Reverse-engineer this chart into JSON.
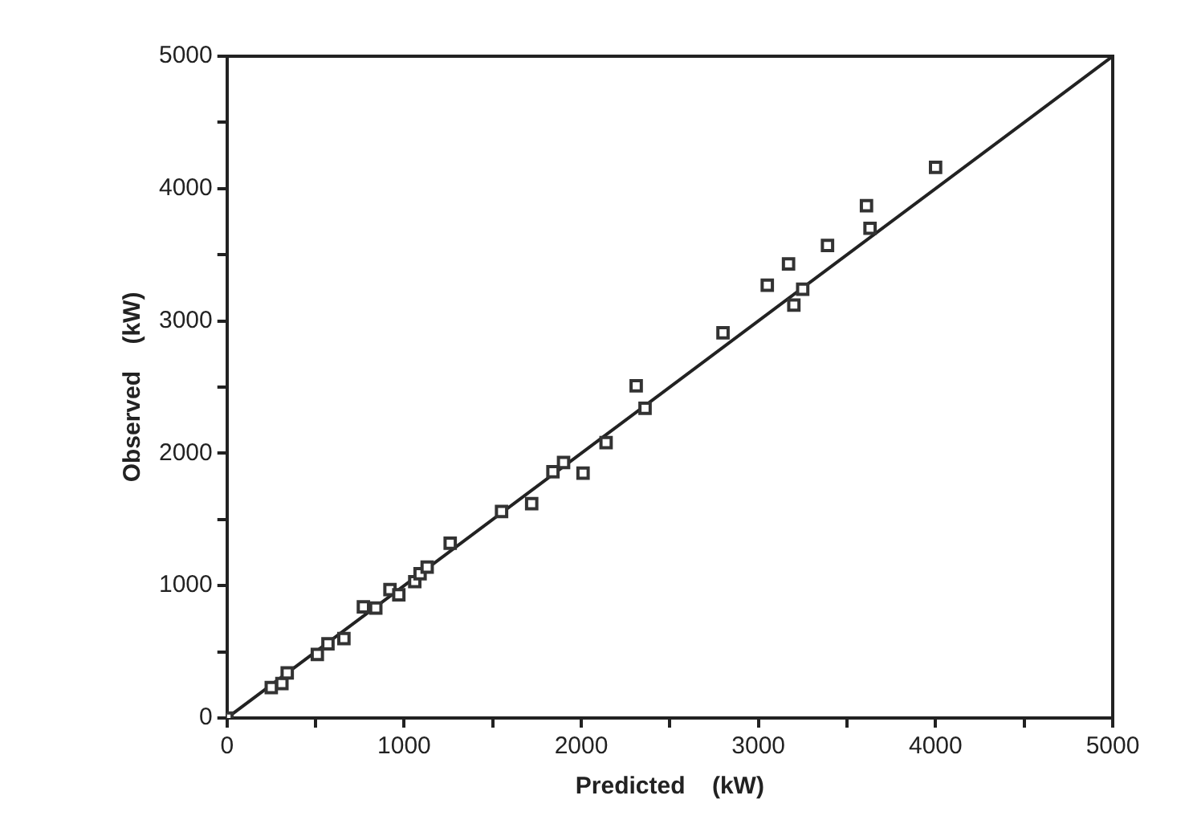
{
  "chart_data": {
    "type": "scatter",
    "xlabel": "Predicted    (kW)",
    "ylabel": "Observed    (kW)",
    "xlim": [
      0,
      5000
    ],
    "ylim": [
      0,
      5000
    ],
    "xticks": [
      0,
      {
        "value": 500,
        "label": null
      },
      1000,
      {
        "value": 1500,
        "label": null
      },
      2000,
      {
        "value": 2500,
        "label": null
      },
      3000,
      {
        "value": 3500,
        "label": null
      },
      4000,
      {
        "value": 4500,
        "label": null
      },
      5000
    ],
    "yticks": [
      0,
      {
        "value": 500,
        "label": null
      },
      1000,
      {
        "value": 1500,
        "label": null
      },
      2000,
      {
        "value": 2500,
        "label": null
      },
      3000,
      {
        "value": 3500,
        "label": null
      },
      4000,
      {
        "value": 4500,
        "label": null
      },
      5000
    ],
    "grid": false,
    "legend": false,
    "marker": "square",
    "series": [
      {
        "type": "scatter",
        "color": "#333333",
        "x": [
          0,
          250,
          310,
          340,
          510,
          570,
          660,
          770,
          840,
          920,
          970,
          1060,
          1090,
          1130,
          1260,
          1550,
          1720,
          1840,
          1900,
          2010,
          2140,
          2310,
          2360,
          2800,
          3050,
          3170,
          3200,
          3250,
          3390,
          3610,
          3630,
          4000
        ],
        "values": [
          0,
          230,
          260,
          340,
          480,
          560,
          600,
          840,
          830,
          970,
          930,
          1030,
          1090,
          1140,
          1320,
          1560,
          1620,
          1860,
          1930,
          1850,
          2080,
          2510,
          2340,
          2910,
          3270,
          3430,
          3120,
          3240,
          3570,
          3870,
          3700,
          4160
        ]
      },
      {
        "type": "line",
        "color": "#222222",
        "x": [
          0,
          5000
        ],
        "values": [
          0,
          5000
        ],
        "marker": "none",
        "line_style": "solid"
      }
    ]
  }
}
